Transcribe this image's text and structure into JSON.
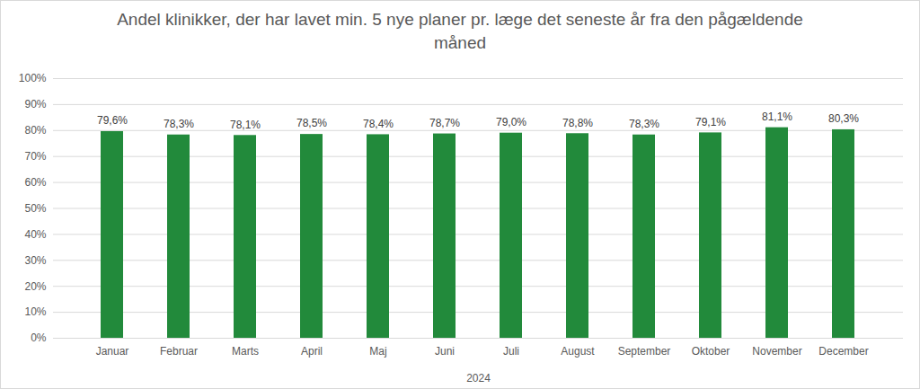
{
  "chart_data": {
    "type": "bar",
    "title": "Andel klinikker, der har lavet min. 5 nye planer pr. læge det seneste år fra den pågældende måned",
    "xlabel": "2024",
    "categories": [
      "Januar",
      "Februar",
      "Marts",
      "April",
      "Maj",
      "Juni",
      "Juli",
      "August",
      "September",
      "Oktober",
      "November",
      "December"
    ],
    "values": [
      79.6,
      78.3,
      78.1,
      78.5,
      78.4,
      78.7,
      79.0,
      78.8,
      78.3,
      79.1,
      81.1,
      80.3
    ],
    "value_labels": [
      "79,6%",
      "78,3%",
      "78,1%",
      "78,5%",
      "78,4%",
      "78,7%",
      "79,0%",
      "78,8%",
      "78,3%",
      "79,1%",
      "81,1%",
      "80,3%"
    ],
    "color": "#228a3b",
    "ylim": [
      0,
      100
    ],
    "yticks": [
      {
        "value": 0,
        "label": "0%"
      },
      {
        "value": 10,
        "label": "10%"
      },
      {
        "value": 20,
        "label": "20%"
      },
      {
        "value": 30,
        "label": "30%"
      },
      {
        "value": 40,
        "label": "40%"
      },
      {
        "value": 50,
        "label": "50%"
      },
      {
        "value": 60,
        "label": "60%"
      },
      {
        "value": 70,
        "label": "70%"
      },
      {
        "value": 80,
        "label": "80%"
      },
      {
        "value": 90,
        "label": "90%"
      },
      {
        "value": 100,
        "label": "100%"
      }
    ],
    "grid": true,
    "data_labels": true
  }
}
